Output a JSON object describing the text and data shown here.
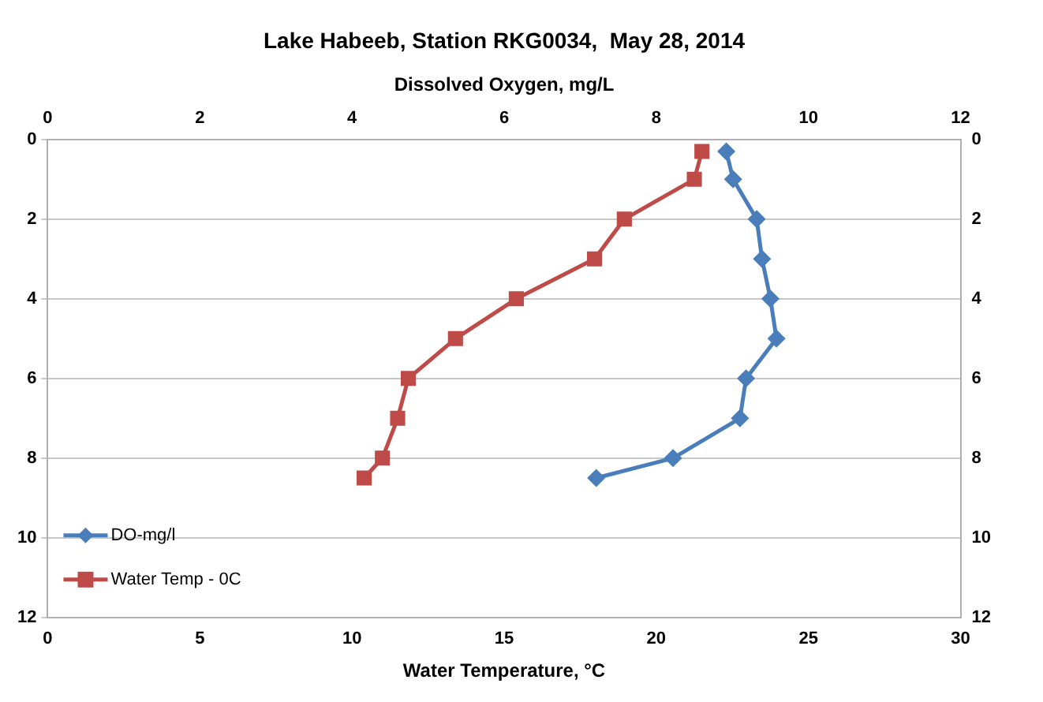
{
  "chart_data": {
    "type": "line",
    "title": "Lake Habeeb, Station RKG0034,  May 28, 2014",
    "xlabel": "Water Temperature, °C",
    "x2label": "Dissolved Oxygen, mg/L",
    "series": [
      {
        "name": "DO-mg/l",
        "color": "#4a7ebb",
        "marker": "diamond",
        "axis": "x2",
        "x": [
          8.92,
          9.01,
          9.32,
          9.39,
          9.5,
          9.58,
          9.18,
          9.1,
          8.22,
          7.21
        ],
        "values": [
          0.3,
          1,
          2,
          3,
          4,
          5,
          6,
          7,
          8,
          8.5
        ]
      },
      {
        "name": "Water Temp - 0C",
        "color": "#be4b48",
        "marker": "square",
        "x": [
          21.5,
          21.25,
          18.95,
          17.97,
          15.4,
          13.4,
          11.85,
          11.5,
          11.0,
          10.4
        ],
        "values": [
          0.3,
          1,
          2,
          3,
          4,
          5,
          6,
          7,
          8,
          8.5
        ]
      }
    ],
    "xlim": [
      0,
      30
    ],
    "xticks": [
      0,
      5,
      10,
      15,
      20,
      25,
      30
    ],
    "x2lim": [
      0,
      12
    ],
    "x2ticks": [
      0,
      2,
      4,
      6,
      8,
      10,
      12
    ],
    "ylim": [
      12,
      0
    ],
    "yticks": [
      0,
      2,
      4,
      6,
      8,
      10,
      12
    ],
    "y2lim": [
      12,
      0
    ],
    "y2ticks": [
      0,
      2,
      4,
      6,
      8,
      10,
      12
    ],
    "grid": "y",
    "legend": "bottom left"
  }
}
